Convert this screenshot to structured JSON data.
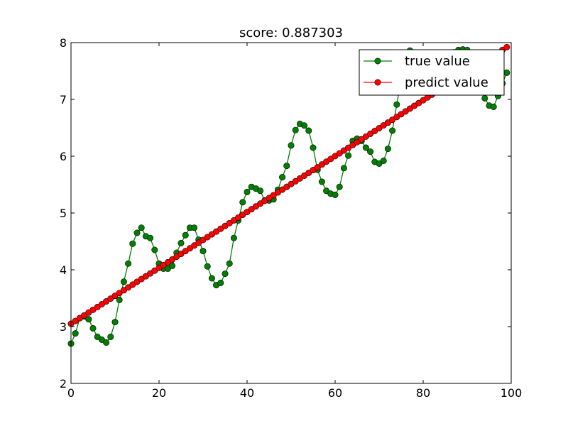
{
  "chart_data": {
    "type": "line",
    "title": "score: 0.887303",
    "xlabel": "",
    "ylabel": "",
    "xlim": [
      0,
      100
    ],
    "ylim": [
      2,
      8
    ],
    "xticks": [
      "0",
      "20",
      "40",
      "60",
      "80",
      "100"
    ],
    "yticks": [
      "2",
      "3",
      "4",
      "5",
      "6",
      "7",
      "8"
    ],
    "grid": false,
    "legend_position": "top-right",
    "series": [
      {
        "name": "true value",
        "color": "#008000",
        "marker": "circle",
        "x": [
          0,
          1,
          2,
          3,
          4,
          5,
          6,
          7,
          8,
          9,
          10,
          11,
          12,
          13,
          14,
          15,
          16,
          17,
          18,
          19,
          20,
          21,
          22,
          23,
          24,
          25,
          26,
          27,
          28,
          29,
          30,
          31,
          32,
          33,
          34,
          35,
          36,
          37,
          38,
          39,
          40,
          41,
          42,
          43,
          44,
          45,
          46,
          47,
          48,
          49,
          50,
          51,
          52,
          53,
          54,
          55,
          56,
          57,
          58,
          59,
          60,
          61,
          62,
          63,
          64,
          65,
          66,
          67,
          68,
          69,
          70,
          71,
          72,
          73,
          74,
          75,
          76,
          77,
          78,
          79,
          80,
          81,
          82,
          83,
          84,
          85,
          86,
          87,
          88,
          89,
          90,
          91,
          92,
          93,
          94,
          95,
          96,
          97,
          98,
          99
        ],
        "values": [
          2.7,
          2.88,
          3.15,
          3.18,
          3.13,
          2.97,
          2.82,
          2.77,
          2.72,
          2.82,
          3.08,
          3.47,
          3.79,
          4.11,
          4.46,
          4.65,
          4.74,
          4.59,
          4.56,
          4.35,
          4.11,
          4.02,
          4.02,
          4.07,
          4.3,
          4.47,
          4.61,
          4.74,
          4.74,
          4.53,
          4.33,
          4.06,
          3.85,
          3.73,
          3.77,
          3.93,
          4.11,
          4.56,
          4.87,
          5.19,
          5.37,
          5.46,
          5.43,
          5.39,
          5.22,
          5.22,
          5.24,
          5.41,
          5.63,
          5.83,
          6.19,
          6.46,
          6.57,
          6.54,
          6.45,
          6.15,
          5.76,
          5.55,
          5.39,
          5.34,
          5.32,
          5.46,
          5.79,
          6.01,
          6.27,
          6.31,
          6.27,
          6.15,
          6.08,
          5.9,
          5.87,
          5.92,
          6.13,
          6.45,
          6.91,
          7.34,
          7.62,
          7.86,
          7.8,
          7.66,
          7.49,
          7.29,
          7.16,
          7.2,
          7.33,
          7.52,
          7.7,
          7.83,
          7.87,
          7.88,
          7.87,
          7.8,
          7.56,
          7.27,
          7.02,
          6.89,
          6.87,
          7.06,
          7.28,
          7.47
        ]
      },
      {
        "name": "predict value",
        "color": "#ff0000",
        "marker": "circle",
        "x_start": 0,
        "x_end": 99,
        "y_start": 3.05,
        "y_end": 7.92,
        "count": 100
      }
    ]
  }
}
